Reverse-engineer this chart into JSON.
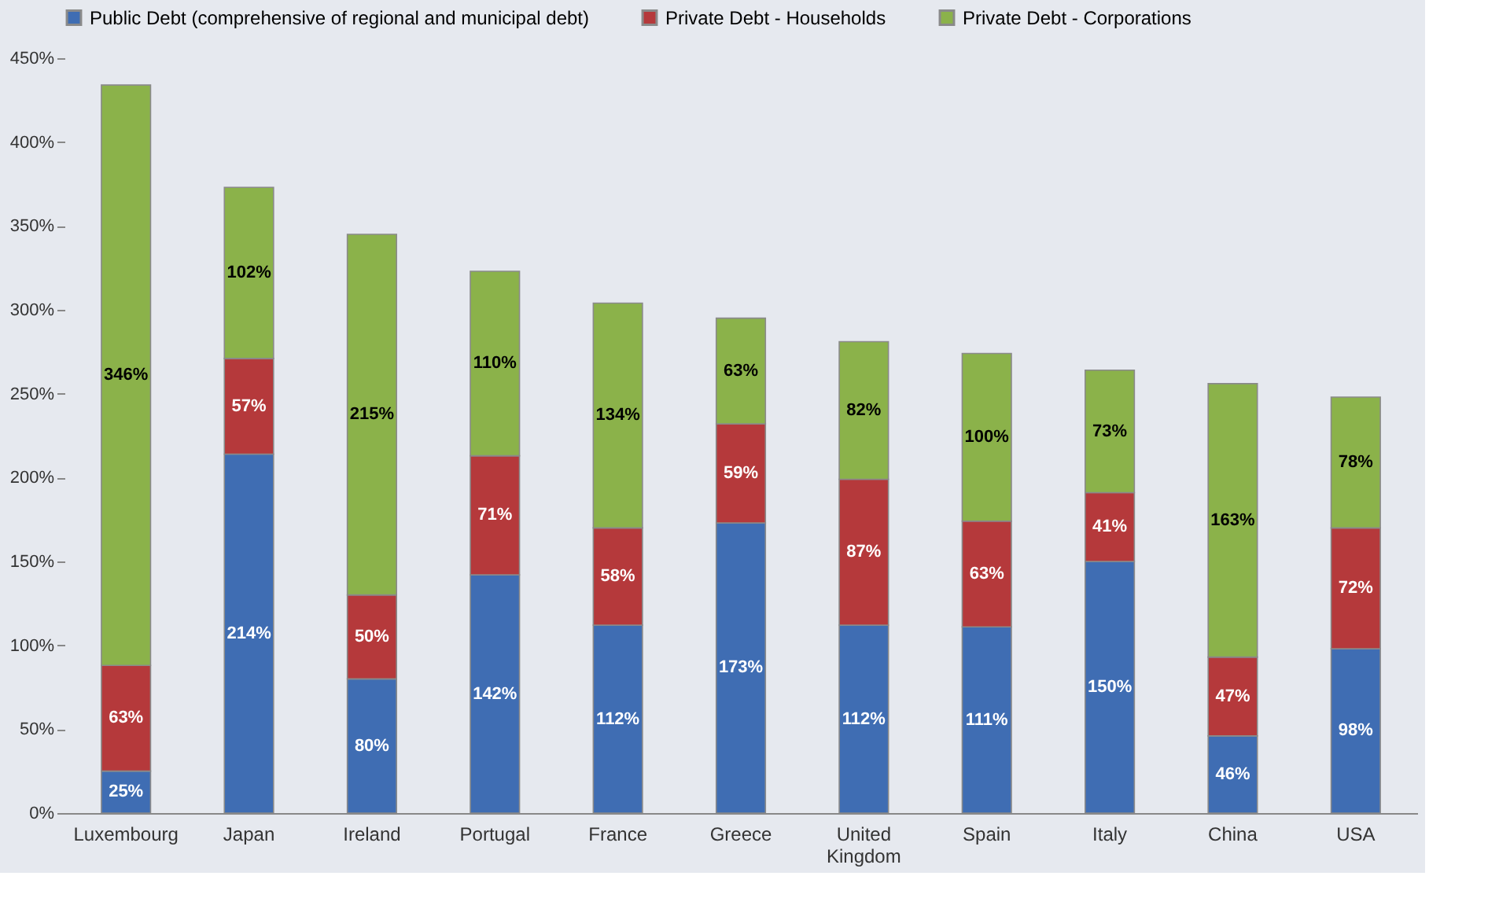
{
  "chart_data": {
    "type": "bar",
    "stacked": true,
    "legend": "top",
    "grid": false,
    "categories": [
      "Luxembourg",
      "Japan",
      "Ireland",
      "Portugal",
      "France",
      "Greece",
      "United Kingdom",
      "Spain",
      "Italy",
      "China",
      "USA"
    ],
    "series": [
      {
        "name": "Public Debt (comprehensive of regional and municipal debt)",
        "color": "#3f6db3",
        "values": [
          25,
          214,
          80,
          142,
          112,
          173,
          112,
          111,
          150,
          46,
          98
        ],
        "value_labels": [
          "25%",
          "214%",
          "80%",
          "142%",
          "112%",
          "173%",
          "112%",
          "111%",
          "150%",
          "46%",
          "98%"
        ]
      },
      {
        "name": "Private Debt - Households",
        "color": "#b5393b",
        "values": [
          63,
          57,
          50,
          71,
          58,
          59,
          87,
          63,
          41,
          47,
          72
        ],
        "value_labels": [
          "63%",
          "57%",
          "50%",
          "71%",
          "58%",
          "59%",
          "87%",
          "63%",
          "41%",
          "47%",
          "72%"
        ]
      },
      {
        "name": "Private Debt - Corporations",
        "color": "#8bb24a",
        "values": [
          346,
          102,
          215,
          110,
          134,
          63,
          82,
          100,
          73,
          163,
          78
        ],
        "value_labels": [
          "346%",
          "102%",
          "215%",
          "110%",
          "134%",
          "63%",
          "82%",
          "100%",
          "73%",
          "163%",
          "78%"
        ]
      }
    ],
    "ylim": [
      0,
      450
    ],
    "yticks": [
      {
        "value": 0,
        "label": "0%"
      },
      {
        "value": 50,
        "label": "50%"
      },
      {
        "value": 100,
        "label": "100%"
      },
      {
        "value": 150,
        "label": "150%"
      },
      {
        "value": 200,
        "label": "200%"
      },
      {
        "value": 250,
        "label": "250%"
      },
      {
        "value": 300,
        "label": "300%"
      },
      {
        "value": 350,
        "label": "350%"
      },
      {
        "value": 400,
        "label": "400%"
      },
      {
        "value": 450,
        "label": "450%"
      }
    ]
  }
}
